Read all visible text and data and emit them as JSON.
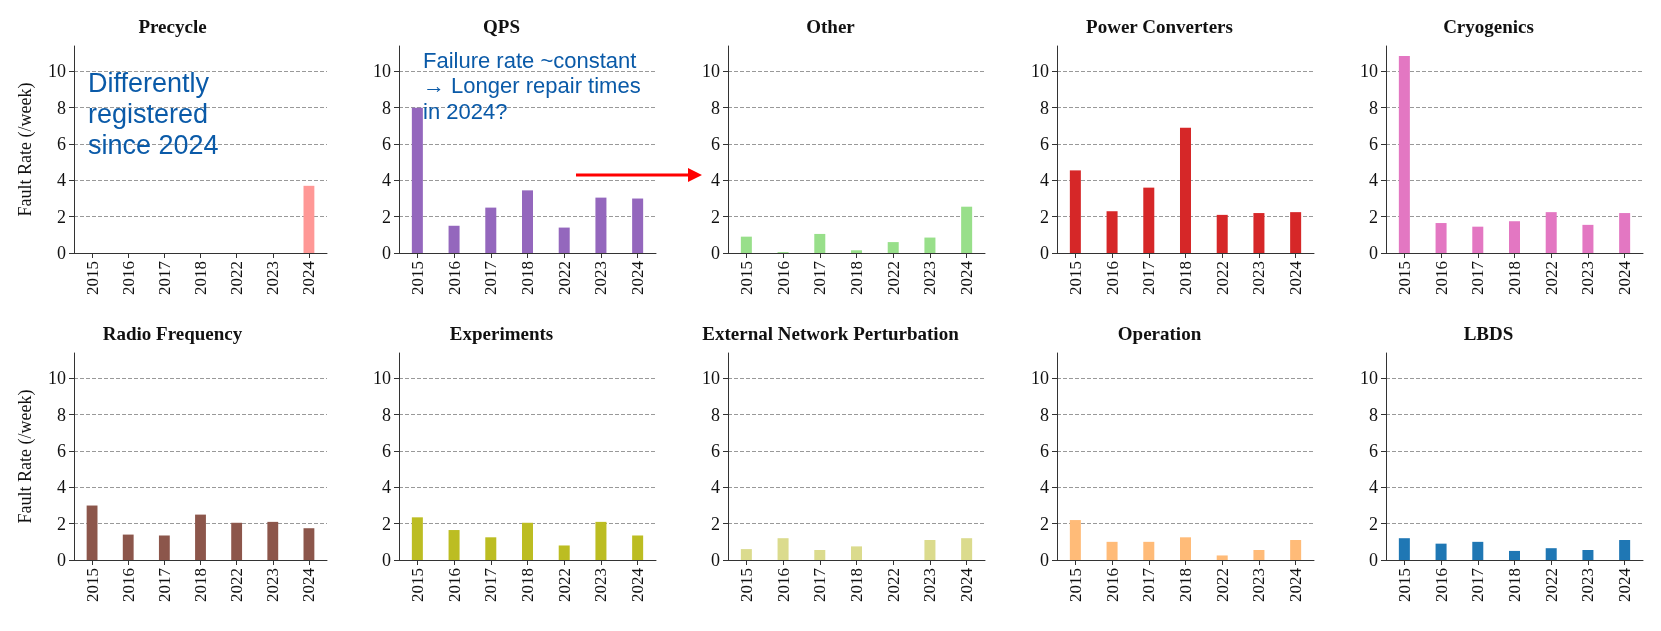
{
  "chart_data": [
    {
      "type": "bar",
      "title": "Precycle",
      "ylabel": "Fault Rate (/week)",
      "categories": [
        "2015",
        "2016",
        "2017",
        "2018",
        "2022",
        "2023",
        "2024"
      ],
      "values": [
        0,
        0,
        0,
        0,
        0,
        0,
        3.7
      ],
      "color": "#ff9896",
      "ylim": [
        0,
        11.4
      ],
      "yticks": [
        0,
        2,
        4,
        6,
        8,
        10
      ],
      "grid": "y",
      "annotations": [
        "Differently registered since 2024"
      ]
    },
    {
      "type": "bar",
      "title": "QPS",
      "categories": [
        "2015",
        "2016",
        "2017",
        "2018",
        "2022",
        "2023",
        "2024"
      ],
      "values": [
        8.0,
        1.5,
        2.5,
        3.45,
        1.4,
        3.05,
        3.0
      ],
      "color": "#9467bd",
      "ylim": [
        0,
        11.4
      ],
      "yticks": [
        0,
        2,
        4,
        6,
        8,
        10
      ],
      "grid": "y",
      "annotations": [
        "Failure rate ~constant → Longer repair times in 2024?"
      ]
    },
    {
      "type": "bar",
      "title": "Other",
      "categories": [
        "2015",
        "2016",
        "2017",
        "2018",
        "2022",
        "2023",
        "2024"
      ],
      "values": [
        0.9,
        0.05,
        1.05,
        0.15,
        0.6,
        0.85,
        2.55
      ],
      "color": "#98df8a",
      "ylim": [
        0,
        11.4
      ],
      "yticks": [
        0,
        2,
        4,
        6,
        8,
        10
      ],
      "grid": "y"
    },
    {
      "type": "bar",
      "title": "Power Converters",
      "categories": [
        "2015",
        "2016",
        "2017",
        "2018",
        "2022",
        "2023",
        "2024"
      ],
      "values": [
        4.55,
        2.3,
        3.6,
        6.9,
        2.1,
        2.2,
        2.25
      ],
      "color": "#d62728",
      "ylim": [
        0,
        11.4
      ],
      "yticks": [
        0,
        2,
        4,
        6,
        8,
        10
      ],
      "grid": "y"
    },
    {
      "type": "bar",
      "title": "Cryogenics",
      "categories": [
        "2015",
        "2016",
        "2017",
        "2018",
        "2022",
        "2023",
        "2024"
      ],
      "values": [
        10.85,
        1.65,
        1.45,
        1.75,
        2.25,
        1.55,
        2.2
      ],
      "color": "#e377c2",
      "ylim": [
        0,
        11.4
      ],
      "yticks": [
        0,
        2,
        4,
        6,
        8,
        10
      ],
      "grid": "y"
    },
    {
      "type": "bar",
      "title": "Radio Frequency",
      "ylabel": "Fault Rate (/week)",
      "categories": [
        "2015",
        "2016",
        "2017",
        "2018",
        "2022",
        "2023",
        "2024"
      ],
      "values": [
        3.0,
        1.4,
        1.35,
        2.5,
        2.05,
        2.1,
        1.75
      ],
      "color": "#8c564b",
      "ylim": [
        0,
        11.4
      ],
      "yticks": [
        0,
        2,
        4,
        6,
        8,
        10
      ],
      "grid": "y"
    },
    {
      "type": "bar",
      "title": "Experiments",
      "categories": [
        "2015",
        "2016",
        "2017",
        "2018",
        "2022",
        "2023",
        "2024"
      ],
      "values": [
        2.35,
        1.65,
        1.25,
        2.05,
        0.8,
        2.1,
        1.35
      ],
      "color": "#bcbd22",
      "ylim": [
        0,
        11.4
      ],
      "yticks": [
        0,
        2,
        4,
        6,
        8,
        10
      ],
      "grid": "y"
    },
    {
      "type": "bar",
      "title": "External Network Perturbation",
      "categories": [
        "2015",
        "2016",
        "2017",
        "2018",
        "2022",
        "2023",
        "2024"
      ],
      "values": [
        0.6,
        1.2,
        0.55,
        0.75,
        0,
        1.1,
        1.2
      ],
      "color": "#dbdb8d",
      "ylim": [
        0,
        11.4
      ],
      "yticks": [
        0,
        2,
        4,
        6,
        8,
        10
      ],
      "grid": "y"
    },
    {
      "type": "bar",
      "title": "Operation",
      "categories": [
        "2015",
        "2016",
        "2017",
        "2018",
        "2022",
        "2023",
        "2024"
      ],
      "values": [
        2.2,
        1.0,
        1.0,
        1.25,
        0.25,
        0.55,
        1.1
      ],
      "color": "#ffbb78",
      "ylim": [
        0,
        11.4
      ],
      "yticks": [
        0,
        2,
        4,
        6,
        8,
        10
      ],
      "grid": "y"
    },
    {
      "type": "bar",
      "title": "LBDS",
      "categories": [
        "2015",
        "2016",
        "2017",
        "2018",
        "2022",
        "2023",
        "2024"
      ],
      "values": [
        1.2,
        0.9,
        1.0,
        0.5,
        0.65,
        0.55,
        1.1
      ],
      "color": "#1f77b4",
      "ylim": [
        0,
        11.4
      ],
      "yticks": [
        0,
        2,
        4,
        6,
        8,
        10
      ],
      "grid": "y"
    }
  ]
}
